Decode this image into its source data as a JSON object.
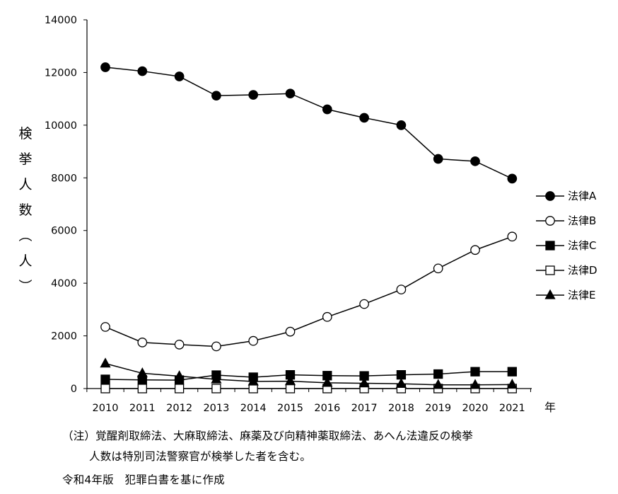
{
  "chart_data": {
    "type": "line",
    "x": [
      2010,
      2011,
      2012,
      2013,
      2014,
      2015,
      2016,
      2017,
      2018,
      2019,
      2020,
      2021
    ],
    "xlabel": "年",
    "ylabel": "検挙人数（人）",
    "ylim": [
      0,
      14000
    ],
    "yticks": [
      0,
      2000,
      4000,
      6000,
      8000,
      10000,
      12000,
      14000
    ],
    "grid": false,
    "legend_position": "right",
    "series": [
      {
        "name": "法律A",
        "marker": "filled-circle",
        "values": [
          12200,
          12050,
          11850,
          11120,
          11150,
          11200,
          10600,
          10280,
          10000,
          8720,
          8630,
          7970
        ]
      },
      {
        "name": "法律B",
        "marker": "open-circle",
        "values": [
          2340,
          1750,
          1670,
          1600,
          1810,
          2160,
          2720,
          3210,
          3760,
          4560,
          5260,
          5770
        ]
      },
      {
        "name": "法律C",
        "marker": "filled-square",
        "values": [
          350,
          330,
          320,
          510,
          430,
          520,
          490,
          480,
          520,
          550,
          640,
          640
        ]
      },
      {
        "name": "法律D",
        "marker": "open-square",
        "values": [
          0,
          0,
          0,
          0,
          0,
          0,
          0,
          0,
          0,
          0,
          0,
          0
        ]
      },
      {
        "name": "法律E",
        "marker": "filled-triangle",
        "values": [
          950,
          580,
          470,
          350,
          270,
          280,
          220,
          200,
          180,
          140,
          140,
          150
        ]
      }
    ]
  },
  "notes": {
    "line1": "（注）覚醒剤取締法、大麻取締法、麻薬及び向精神薬取締法、あへん法違反の検挙",
    "line2": "人数は特別司法警察官が検挙した者を含む。",
    "source": "令和4年版　犯罪白書を基に作成"
  }
}
